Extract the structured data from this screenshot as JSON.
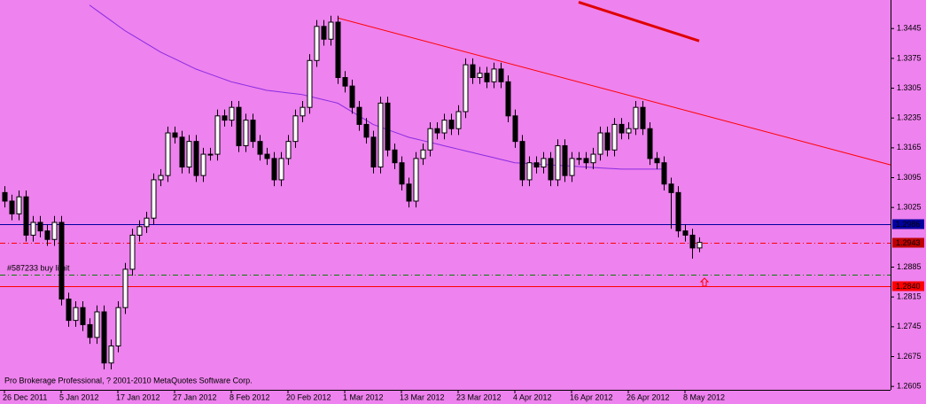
{
  "chart_data": {
    "type": "candlestick",
    "background": "#ee82ee",
    "bull_color": "#ffffff",
    "bear_color": "#000000",
    "categories": [
      "26 Dec 2011",
      null,
      null,
      null,
      null,
      null,
      null,
      null,
      "5 Jan 2012",
      null,
      null,
      null,
      null,
      null,
      null,
      null,
      "17 Jan 2012",
      null,
      null,
      null,
      null,
      null,
      null,
      null,
      "27 Jan 2012",
      null,
      null,
      null,
      null,
      null,
      null,
      null,
      "8 Feb 2012",
      null,
      null,
      null,
      null,
      null,
      null,
      null,
      "20 Feb 2012",
      null,
      null,
      null,
      null,
      null,
      null,
      null,
      "1 Mar 2012",
      null,
      null,
      null,
      null,
      null,
      null,
      null,
      "13 Mar 2012",
      null,
      null,
      null,
      null,
      null,
      null,
      null,
      "23 Mar 2012",
      null,
      null,
      null,
      null,
      null,
      null,
      null,
      "4 Apr 2012",
      null,
      null,
      null,
      null,
      null,
      null,
      null,
      "16 Apr 2012",
      null,
      null,
      null,
      null,
      null,
      null,
      null,
      "26 Apr 2012",
      null,
      null,
      null,
      null,
      null,
      null,
      null,
      "8 May 2012",
      null,
      null
    ],
    "open": [
      1.306,
      1.304,
      1.301,
      1.305,
      1.296,
      1.299,
      1.297,
      1.295,
      1.299,
      1.281,
      1.276,
      1.279,
      1.275,
      1.272,
      1.278,
      1.266,
      1.27,
      1.279,
      1.288,
      1.296,
      1.298,
      1.3,
      1.309,
      1.31,
      1.32,
      1.319,
      1.312,
      1.318,
      1.31,
      1.315,
      1.315,
      1.324,
      1.323,
      1.326,
      1.317,
      1.323,
      1.318,
      1.315,
      1.314,
      1.309,
      1.314,
      1.318,
      1.324,
      1.326,
      1.337,
      1.345,
      1.342,
      1.346,
      1.333,
      1.331,
      1.326,
      1.322,
      1.319,
      1.312,
      1.327,
      1.316,
      1.313,
      1.308,
      1.304,
      1.314,
      1.316,
      1.321,
      1.32,
      1.323,
      1.321,
      1.325,
      1.336,
      1.333,
      1.334,
      1.332,
      1.335,
      1.332,
      1.324,
      1.318,
      1.309,
      1.313,
      1.312,
      1.314,
      1.309,
      1.317,
      1.31,
      1.314,
      1.314,
      1.313,
      1.315,
      1.32,
      1.316,
      1.322,
      1.32,
      1.321,
      1.326,
      1.321,
      1.314,
      1.313,
      1.308,
      1.306,
      1.297,
      1.296,
      1.293
    ],
    "high": [
      1.3075,
      1.3055,
      1.3065,
      1.3065,
      1.3005,
      1.3005,
      1.2985,
      1.3005,
      1.3005,
      1.2825,
      1.2805,
      1.2805,
      1.2765,
      1.2795,
      1.2795,
      1.2715,
      1.2805,
      1.2895,
      1.2975,
      1.2995,
      1.3015,
      1.3105,
      1.3115,
      1.3215,
      1.3215,
      1.3205,
      1.3195,
      1.3195,
      1.3165,
      1.3165,
      1.3255,
      1.3255,
      1.3275,
      1.3275,
      1.3245,
      1.3245,
      1.3195,
      1.3165,
      1.3155,
      1.3155,
      1.3195,
      1.3255,
      1.3275,
      1.3385,
      1.3465,
      1.3465,
      1.3475,
      1.3475,
      1.3345,
      1.3325,
      1.3275,
      1.3235,
      1.3205,
      1.3285,
      1.3285,
      1.3175,
      1.3145,
      1.3095,
      1.3155,
      1.3175,
      1.3225,
      1.3225,
      1.3245,
      1.3245,
      1.3265,
      1.3375,
      1.3375,
      1.3355,
      1.3355,
      1.3365,
      1.3365,
      1.3335,
      1.3255,
      1.3195,
      1.3145,
      1.3145,
      1.3155,
      1.3155,
      1.3185,
      1.3185,
      1.3155,
      1.3155,
      1.3155,
      1.3165,
      1.3215,
      1.3215,
      1.3235,
      1.3235,
      1.3225,
      1.3275,
      1.3275,
      1.3225,
      1.3155,
      1.3145,
      1.3095,
      1.3075,
      1.2985,
      1.2975,
      1.2955
    ],
    "low": [
      1.3025,
      1.2995,
      1.2995,
      1.2945,
      1.2945,
      1.2955,
      1.2935,
      1.2935,
      1.2795,
      1.2745,
      1.2745,
      1.2735,
      1.2705,
      1.2705,
      1.2645,
      1.2645,
      1.2685,
      1.2775,
      1.2865,
      1.2945,
      1.2965,
      1.2985,
      1.3075,
      1.3085,
      1.3175,
      1.3105,
      1.3105,
      1.3085,
      1.3085,
      1.3135,
      1.3135,
      1.3215,
      1.3215,
      1.3155,
      1.3155,
      1.3165,
      1.3135,
      1.3125,
      1.3075,
      1.3075,
      1.3125,
      1.3165,
      1.3225,
      1.3245,
      1.3355,
      1.3405,
      1.3405,
      1.3315,
      1.3295,
      1.3245,
      1.3205,
      1.3175,
      1.3105,
      1.3105,
      1.3145,
      1.3115,
      1.3065,
      1.3025,
      1.3025,
      1.3125,
      1.3145,
      1.3185,
      1.3185,
      1.3195,
      1.3195,
      1.3235,
      1.3315,
      1.3315,
      1.3305,
      1.3305,
      1.3305,
      1.3225,
      1.3165,
      1.3075,
      1.3075,
      1.3105,
      1.3105,
      1.3075,
      1.3075,
      1.3085,
      1.3085,
      1.3125,
      1.3115,
      1.3115,
      1.3135,
      1.3145,
      1.3145,
      1.3185,
      1.3185,
      1.3195,
      1.3195,
      1.3125,
      1.3115,
      1.3065,
      1.2975,
      1.2955,
      1.2945,
      1.2905,
      1.292
    ],
    "close": [
      1.304,
      1.301,
      1.305,
      1.296,
      1.299,
      1.297,
      1.295,
      1.299,
      1.281,
      1.276,
      1.279,
      1.275,
      1.272,
      1.278,
      1.266,
      1.27,
      1.279,
      1.288,
      1.296,
      1.298,
      1.3,
      1.309,
      1.31,
      1.32,
      1.319,
      1.312,
      1.318,
      1.31,
      1.315,
      1.315,
      1.324,
      1.323,
      1.326,
      1.317,
      1.323,
      1.318,
      1.315,
      1.314,
      1.309,
      1.314,
      1.318,
      1.324,
      1.326,
      1.337,
      1.345,
      1.342,
      1.346,
      1.333,
      1.331,
      1.326,
      1.322,
      1.319,
      1.312,
      1.327,
      1.316,
      1.313,
      1.308,
      1.304,
      1.314,
      1.316,
      1.321,
      1.32,
      1.323,
      1.321,
      1.325,
      1.336,
      1.333,
      1.334,
      1.332,
      1.335,
      1.332,
      1.324,
      1.318,
      1.309,
      1.313,
      1.312,
      1.314,
      1.309,
      1.317,
      1.31,
      1.314,
      1.314,
      1.313,
      1.315,
      1.32,
      1.316,
      1.322,
      1.32,
      1.321,
      1.326,
      1.321,
      1.314,
      1.313,
      1.308,
      1.306,
      1.297,
      1.296,
      1.293,
      1.2943
    ],
    "moving_average": {
      "color": "#8a2be2",
      "values": [
        null,
        null,
        null,
        null,
        null,
        null,
        null,
        null,
        null,
        null,
        null,
        null,
        1.35,
        1.3488,
        1.3476,
        1.3464,
        1.3452,
        1.344,
        1.343,
        1.342,
        1.341,
        1.34,
        1.339,
        1.3382,
        1.3374,
        1.3366,
        1.3358,
        1.335,
        1.3344,
        1.3338,
        1.3332,
        1.3326,
        1.332,
        1.3316,
        1.3312,
        1.3308,
        1.3304,
        1.33,
        1.3298,
        1.3296,
        1.3294,
        1.3292,
        1.329,
        1.3286,
        1.3282,
        1.3278,
        1.3274,
        1.327,
        1.326,
        1.325,
        1.324,
        1.323,
        1.322,
        1.3214,
        1.3208,
        1.3202,
        1.3196,
        1.319,
        1.3186,
        1.3182,
        1.3178,
        1.3174,
        1.317,
        1.3166,
        1.3162,
        1.3158,
        1.3154,
        1.315,
        1.3146,
        1.3142,
        1.3138,
        1.3134,
        1.313,
        1.3129,
        1.3128,
        1.3127,
        1.3126,
        1.3125,
        1.3124,
        1.3123,
        1.3122,
        1.3121,
        1.312,
        1.3119,
        1.3118,
        1.3117,
        1.3116,
        1.3115,
        1.3115,
        1.3115,
        1.3115,
        1.3115,
        1.3115,
        1.3115,
        null,
        null,
        null,
        null,
        null
      ]
    },
    "trendlines": [
      {
        "color": "#ff0000",
        "width": 1,
        "x": [
          47,
          125
        ],
        "values": [
          1.347,
          1.3125
        ]
      },
      {
        "color": "#e00000",
        "width": 3,
        "x": [
          81,
          98
        ],
        "values": [
          1.3507,
          1.3416
        ]
      }
    ],
    "levels": [
      {
        "value": 1.2986,
        "color": "#0000a0",
        "dash": "none",
        "label": "1.2986"
      },
      {
        "value": 1.2943,
        "color": "#ff0000",
        "dash": "6 3 1 3",
        "label": "1.2943",
        "box": "#c00000"
      },
      {
        "value": 1.2867,
        "color": "#008000",
        "dash": "6 3 1 3"
      },
      {
        "value": 1.284,
        "color": "#ff0000",
        "dash": "none",
        "label": "1.2840"
      }
    ],
    "order_label": "#587233 buy limit",
    "copyright": "Pro Brokerage Professional, ? 2001-2010 MetaQuotes Software Corp.",
    "ylim": [
      1.2597,
      1.3512
    ],
    "yticks": [
      1.3445,
      1.3375,
      1.3305,
      1.3235,
      1.3165,
      1.3095,
      1.3025,
      1.2885,
      1.2815,
      1.2745,
      1.2675,
      1.2605
    ]
  }
}
